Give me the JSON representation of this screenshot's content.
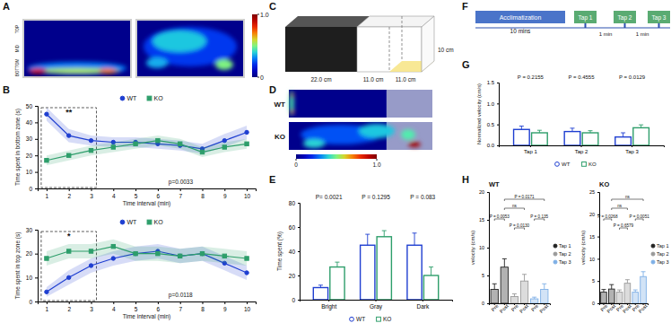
{
  "panel_letters": [
    "A",
    "B",
    "C",
    "D",
    "E",
    "F",
    "G",
    "H"
  ],
  "figure_a": {
    "zones": [
      "TOP",
      "MID",
      "BOTTOM"
    ],
    "colorbar": {
      "range": [
        0,
        1
      ],
      "ticks": [
        0,
        {
          "value": 1,
          "label": "1.0"
        }
      ]
    }
  },
  "figure_c": {
    "dimensions": [
      "22.0 cm",
      "11.0 cm",
      "11.0 cm",
      "10 cm"
    ]
  },
  "figure_d": {
    "groups": [
      "WT",
      "KO"
    ],
    "colorbar": {
      "range": [
        0,
        1
      ],
      "ticks": [
        0,
        {
          "value": 1,
          "label": "1.0"
        }
      ]
    }
  },
  "figure_f": {
    "phase": "Acclimatization",
    "phase_duration": "10 mins",
    "taps": [
      "Tap 1",
      "Tap 2",
      "Tap 3"
    ],
    "intervals": [
      "1 min",
      "1 min"
    ]
  },
  "chart_data": [
    {
      "type": "line",
      "x_label": "Time interval (min)",
      "y_label": "Time spent in bottom zone (s)",
      "x": [
        1,
        2,
        3,
        4,
        5,
        6,
        7,
        8,
        9,
        10
      ],
      "xlim": [
        0.6,
        10.4
      ],
      "xticks": [
        1,
        2,
        3,
        4,
        5,
        6,
        7,
        8,
        9,
        10
      ],
      "ylim": [
        0,
        50
      ],
      "yticks": [
        0,
        10,
        20,
        30,
        40,
        50
      ],
      "legend": "top",
      "annotations": [
        "**",
        "p=0.0033"
      ],
      "series": [
        {
          "name": "WT",
          "color": "#1f3fd1",
          "marker": "circle",
          "values": [
            45,
            32,
            29,
            28,
            28,
            27,
            26,
            24,
            29,
            34
          ],
          "errors": [
            4,
            4,
            3,
            3,
            3,
            3,
            3,
            3,
            4,
            4
          ]
        },
        {
          "name": "KO",
          "color": "#2e9e6b",
          "marker": "square",
          "values": [
            17,
            20,
            23,
            25,
            27,
            29,
            27,
            22,
            25,
            27
          ],
          "errors": [
            3,
            3,
            3,
            3,
            3,
            3,
            3,
            3,
            3,
            3
          ]
        }
      ]
    },
    {
      "type": "line",
      "x_label": "Time interval (min)",
      "y_label": "Time spent in top zone (s)",
      "x": [
        1,
        2,
        3,
        4,
        5,
        6,
        7,
        8,
        9,
        10
      ],
      "xlim": [
        0.6,
        10.4
      ],
      "xticks": [
        1,
        2,
        3,
        4,
        5,
        6,
        7,
        8,
        9,
        10
      ],
      "ylim": [
        0,
        30
      ],
      "yticks": [
        0,
        10,
        20,
        30
      ],
      "legend": "top",
      "annotations": [
        "*",
        "p=0.0118"
      ],
      "series": [
        {
          "name": "WT",
          "color": "#1f3fd1",
          "marker": "circle",
          "values": [
            4,
            10,
            15,
            18,
            20,
            21,
            19,
            20,
            16,
            12
          ],
          "errors": [
            2,
            3,
            3,
            3,
            3,
            3,
            3,
            3,
            3,
            3
          ]
        },
        {
          "name": "KO",
          "color": "#2e9e6b",
          "marker": "square",
          "values": [
            18,
            21,
            21,
            23,
            20,
            20,
            19,
            20,
            19,
            18
          ],
          "errors": [
            3,
            3,
            3,
            3,
            3,
            3,
            3,
            3,
            3,
            3
          ]
        }
      ]
    },
    {
      "type": "bar",
      "y_label": "Time spent (%)",
      "categories": [
        "Bright",
        "Gray",
        "Dark"
      ],
      "ylim": [
        0,
        80
      ],
      "yticks": [
        0,
        20,
        40,
        60,
        80
      ],
      "legend": "bottom",
      "annotations": [
        "P= 0.0021",
        "P = 0.1295",
        "P = 0.083"
      ],
      "series": [
        {
          "name": "WT",
          "color": "#1f3fd1",
          "marker": "circle",
          "values": [
            10,
            45,
            45
          ],
          "errors": [
            2,
            9,
            10
          ]
        },
        {
          "name": "KO",
          "color": "#2e9e6b",
          "marker": "square",
          "values": [
            27,
            52,
            20
          ],
          "errors": [
            4,
            5,
            7
          ]
        }
      ]
    },
    {
      "type": "bar",
      "y_label": "Normalized velocity (cm/s)",
      "categories": [
        "Tap 1",
        "Tap 2",
        "Tap 3"
      ],
      "ylim": [
        0,
        1.5
      ],
      "yticks": [
        {
          "value": 0,
          "label": "0.0"
        },
        0.5,
        {
          "value": 1,
          "label": "1.0"
        },
        1.5
      ],
      "legend": "bottom",
      "annotations": [
        "P = 0.2155",
        "P = 0.4555",
        "P = 0.0129"
      ],
      "series": [
        {
          "name": "WT",
          "color": "#1f3fd1",
          "marker": "circle",
          "values": [
            0.38,
            0.33,
            0.2
          ],
          "errors": [
            0.08,
            0.08,
            0.1
          ]
        },
        {
          "name": "KO",
          "color": "#2e9e6b",
          "marker": "square",
          "values": [
            0.3,
            0.3,
            0.42
          ],
          "errors": [
            0.06,
            0.05,
            0.07
          ]
        }
      ]
    },
    {
      "type": "bar",
      "title": "WT",
      "y_label": "velocity (cm/s)",
      "categories": [
        "Pre",
        "Post",
        "Pre",
        "Post",
        "Pre",
        "Post"
      ],
      "ylim": [
        0,
        20
      ],
      "yticks": [
        0,
        5,
        10,
        15,
        20
      ],
      "legend": "right",
      "annotations": [
        "P = 0.0053",
        "P = 0.0130",
        "P = 0.135",
        "ns",
        "P = 0.0171"
      ],
      "series": [
        {
          "name": "Tap 1",
          "color": "#222222",
          "marker": "circle",
          "values": [
            2.5,
            6.5,
            null,
            null,
            null,
            null
          ],
          "errors": [
            1,
            1.5,
            null,
            null,
            null,
            null
          ]
        },
        {
          "name": "Tap 2",
          "color": "#9a9a9a",
          "marker": "circle",
          "values": [
            null,
            null,
            1.2,
            4,
            null,
            null
          ],
          "errors": [
            null,
            null,
            0.5,
            1.2,
            null,
            null
          ]
        },
        {
          "name": "Tap 3",
          "color": "#7fb0e6",
          "marker": "circle",
          "values": [
            null,
            null,
            null,
            null,
            0.8,
            2.5
          ],
          "errors": [
            null,
            null,
            null,
            null,
            0.3,
            1
          ]
        }
      ]
    },
    {
      "type": "bar",
      "title": "KO",
      "y_label": "velocity (cm/s)",
      "categories": [
        "Pre",
        "Post",
        "Pre",
        "Post",
        "Pre",
        "Post"
      ],
      "ylim": [
        0,
        25
      ],
      "yticks": [
        0,
        5,
        10,
        15,
        20,
        25
      ],
      "legend": "right",
      "annotations": [
        "P = 0.0268",
        "P = 0.6579",
        "P = 0.0051",
        "ns",
        "ns"
      ],
      "series": [
        {
          "name": "Tap 1",
          "color": "#222222",
          "marker": "circle",
          "values": [
            2.5,
            3.2,
            null,
            null,
            null,
            null
          ],
          "errors": [
            0.6,
            1,
            null,
            null,
            null,
            null
          ]
        },
        {
          "name": "Tap 2",
          "color": "#9a9a9a",
          "marker": "circle",
          "values": [
            null,
            null,
            2.5,
            4.5,
            null,
            null
          ],
          "errors": [
            null,
            null,
            0.5,
            0.8,
            null,
            null
          ]
        },
        {
          "name": "Tap 3",
          "color": "#7fb0e6",
          "marker": "circle",
          "values": [
            null,
            null,
            null,
            null,
            2.5,
            6
          ],
          "errors": [
            null,
            null,
            null,
            null,
            0.5,
            1.1
          ]
        }
      ]
    }
  ]
}
